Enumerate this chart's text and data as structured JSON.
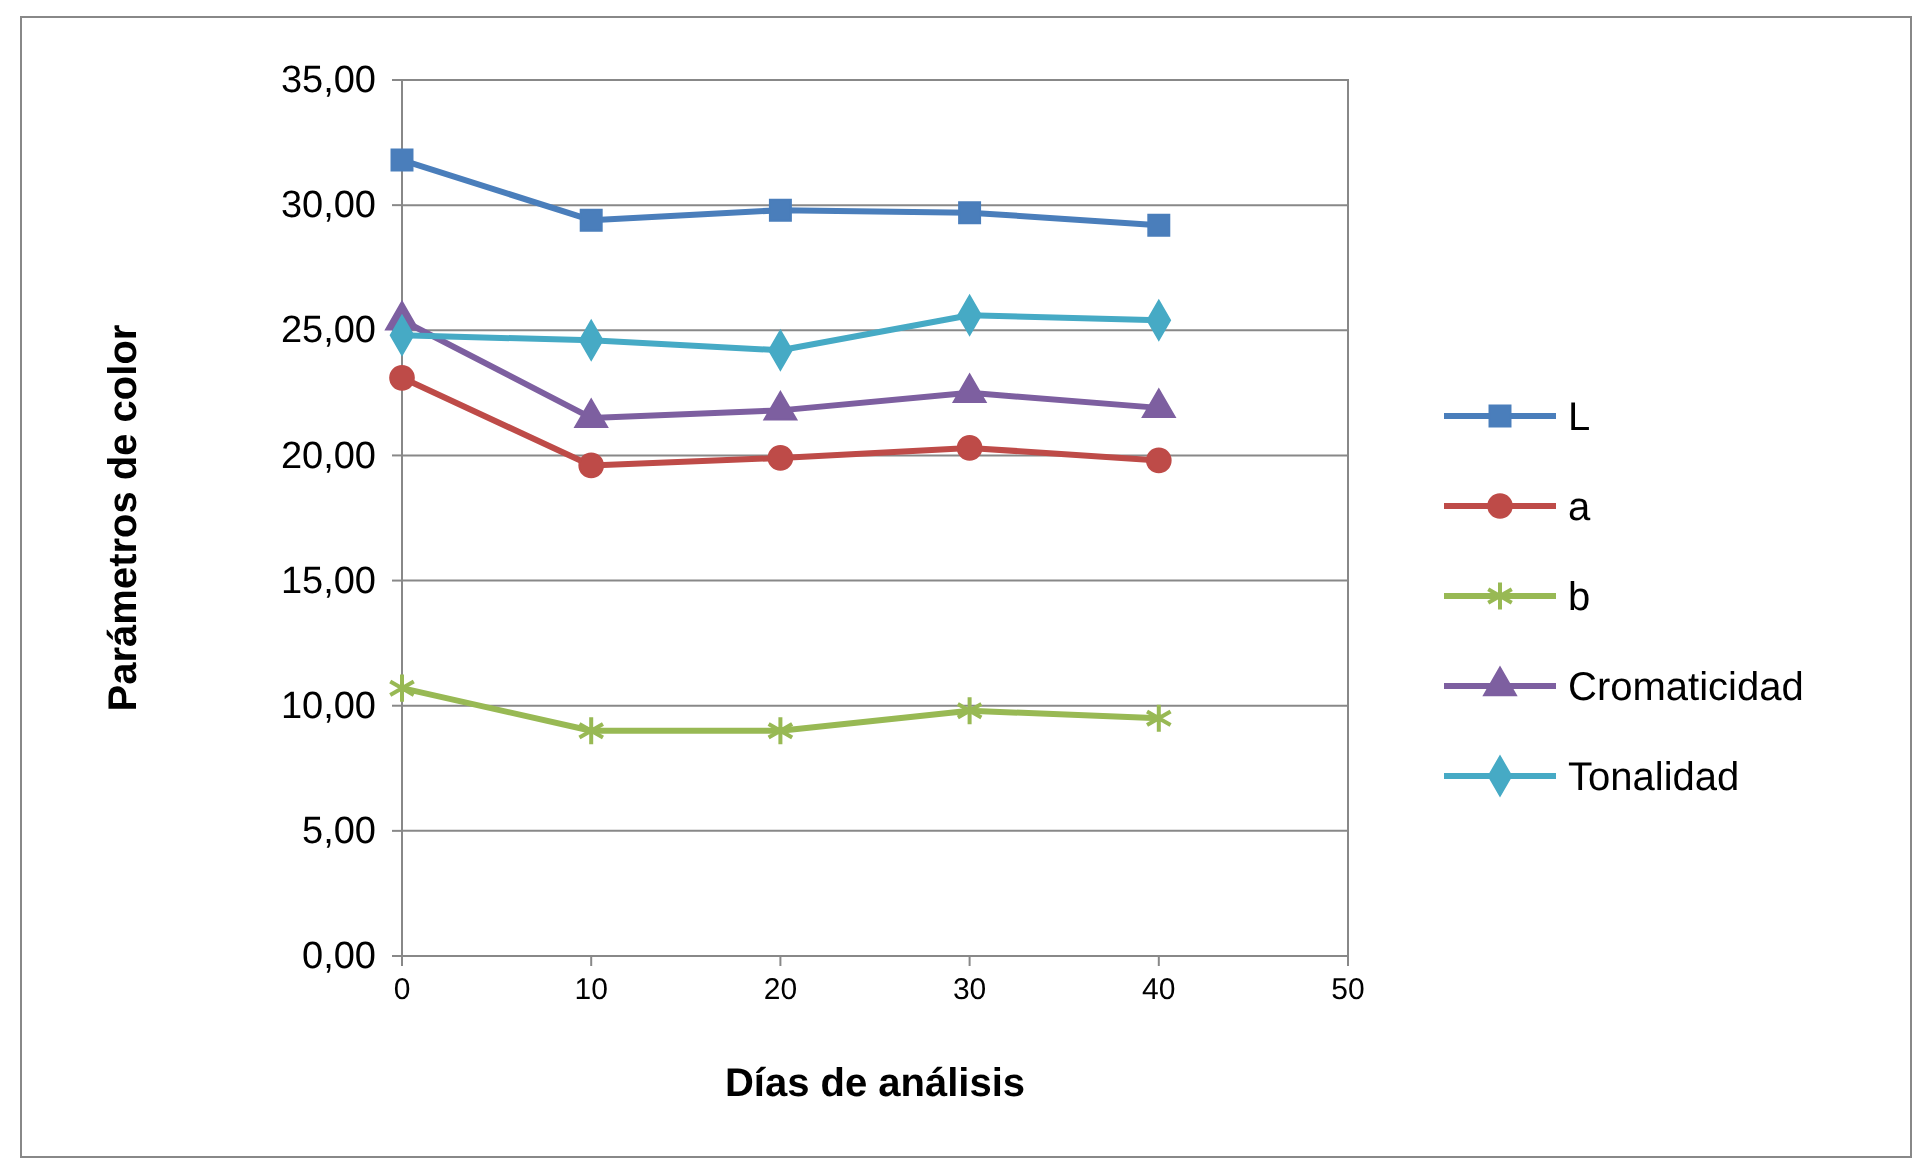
{
  "chart_data": {
    "type": "line",
    "xlabel": "Días de análisis",
    "ylabel": "Parámetros de color",
    "x": [
      0,
      10,
      20,
      30,
      40
    ],
    "xlim": [
      0,
      50
    ],
    "xticks": [
      0,
      10,
      20,
      30,
      40,
      50
    ],
    "ylim": [
      0,
      35
    ],
    "yticks": [
      {
        "value": 0,
        "label": "0,00"
      },
      {
        "value": 5,
        "label": "5,00"
      },
      {
        "value": 10,
        "label": "10,00"
      },
      {
        "value": 15,
        "label": "15,00"
      },
      {
        "value": 20,
        "label": "20,00"
      },
      {
        "value": 25,
        "label": "25,00"
      },
      {
        "value": 30,
        "label": "30,00"
      },
      {
        "value": 35,
        "label": "35,00"
      }
    ],
    "grid": "y",
    "legend": "right",
    "series": [
      {
        "name": "L",
        "color": "#4a7ebb",
        "marker": "square",
        "values": [
          31.8,
          29.4,
          29.8,
          29.7,
          29.2
        ]
      },
      {
        "name": "a",
        "color": "#be4b48",
        "marker": "circle",
        "values": [
          23.1,
          19.6,
          19.9,
          20.3,
          19.8
        ]
      },
      {
        "name": "b",
        "color": "#98b954",
        "marker": "cross",
        "values": [
          10.7,
          9.0,
          9.0,
          9.8,
          9.5
        ]
      },
      {
        "name": "Cromaticidad",
        "color": "#7d5fa0",
        "marker": "triangle",
        "values": [
          25.4,
          21.5,
          21.8,
          22.5,
          21.9
        ]
      },
      {
        "name": "Tonalidad",
        "color": "#46aac5",
        "marker": "diamond",
        "values": [
          24.8,
          24.6,
          24.2,
          25.6,
          25.4
        ]
      }
    ]
  }
}
